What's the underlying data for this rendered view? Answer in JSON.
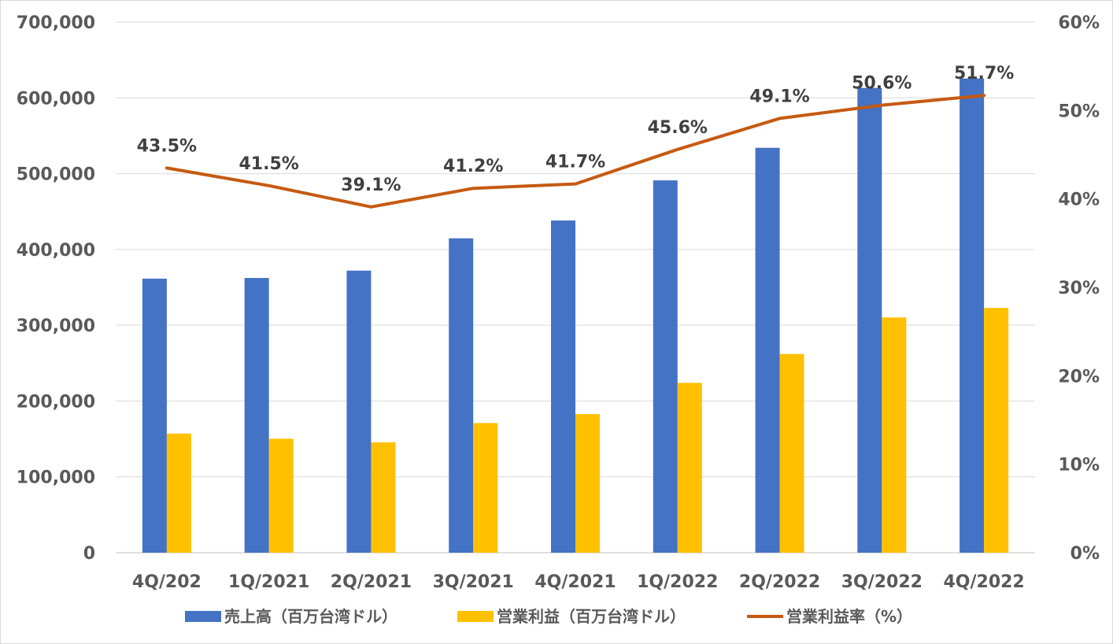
{
  "chart_data": {
    "type": "bar",
    "categories": [
      "4Q/202",
      "1Q/2021",
      "2Q/2021",
      "3Q/2021",
      "4Q/2021",
      "1Q/2022",
      "2Q/2022",
      "3Q/2022",
      "4Q/2022"
    ],
    "series": [
      {
        "name": "売上高（百万台湾ドル）",
        "type": "bar",
        "axis": "left",
        "color": "#4472C4",
        "values": [
          361500,
          362400,
          372100,
          414700,
          438200,
          491100,
          534100,
          613100,
          625500
        ]
      },
      {
        "name": "営業利益（百万台湾ドル）",
        "type": "bar",
        "axis": "left",
        "color": "#FFC000",
        "values": [
          157100,
          150300,
          145600,
          171000,
          182800,
          224000,
          262100,
          310300,
          322900
        ]
      },
      {
        "name": "営業利益率（%）",
        "type": "line",
        "axis": "right",
        "color": "#C55A11",
        "values": [
          43.5,
          41.5,
          39.1,
          41.2,
          41.7,
          45.6,
          49.1,
          50.6,
          51.7
        ],
        "data_labels": [
          "43.5%",
          "41.5%",
          "39.1%",
          "41.2%",
          "41.7%",
          "45.6%",
          "49.1%",
          "50.6%",
          "51.7%"
        ]
      }
    ],
    "y_left": {
      "ylim": [
        0,
        700000
      ],
      "ticks": [
        0,
        100000,
        200000,
        300000,
        400000,
        500000,
        600000,
        700000
      ],
      "tick_labels": [
        "0",
        "100,000",
        "200,000",
        "300,000",
        "400,000",
        "500,000",
        "600,000",
        "700,000"
      ]
    },
    "y_right": {
      "ylim": [
        0,
        60
      ],
      "ticks": [
        0,
        10,
        20,
        30,
        40,
        50,
        60
      ],
      "tick_labels": [
        "0%",
        "10%",
        "20%",
        "30%",
        "40%",
        "50%",
        "60%"
      ]
    },
    "grid": true,
    "gridline_color": "#d9d9d9",
    "legend_position": "bottom"
  }
}
